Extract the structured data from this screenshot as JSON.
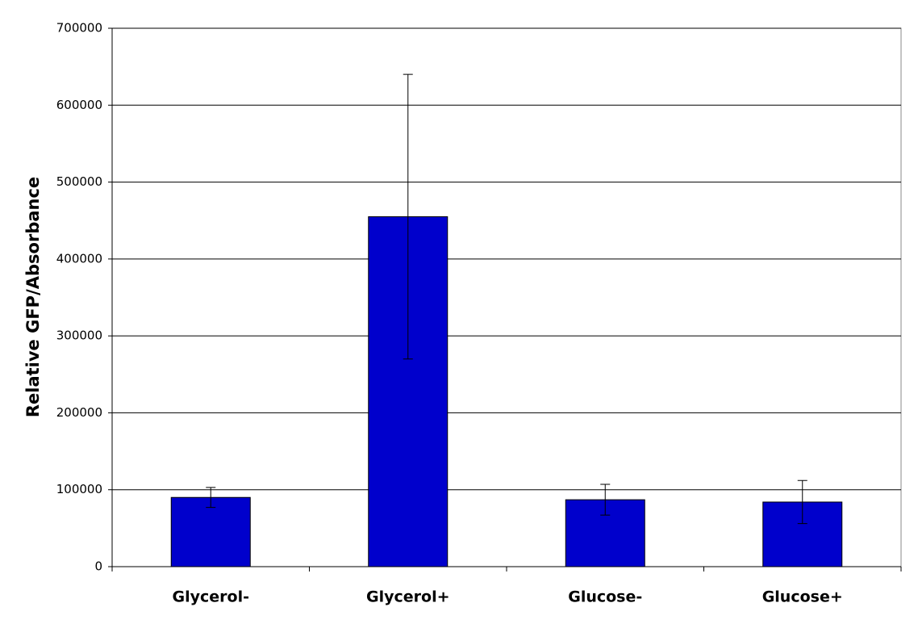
{
  "chart_data": {
    "type": "bar",
    "y_label": "Relative GFP/Absorbance",
    "categories": [
      "Glycerol-",
      "Glycerol+",
      "Glucose-",
      "Glucose+"
    ],
    "values": [
      90000,
      455000,
      87000,
      84000
    ],
    "errors": [
      13000,
      185000,
      20000,
      28000
    ],
    "color": "#0000cc",
    "ylim": [
      0,
      700000
    ],
    "yticks": [
      0,
      100000,
      200000,
      300000,
      400000,
      500000,
      600000,
      700000
    ],
    "grid": true
  }
}
